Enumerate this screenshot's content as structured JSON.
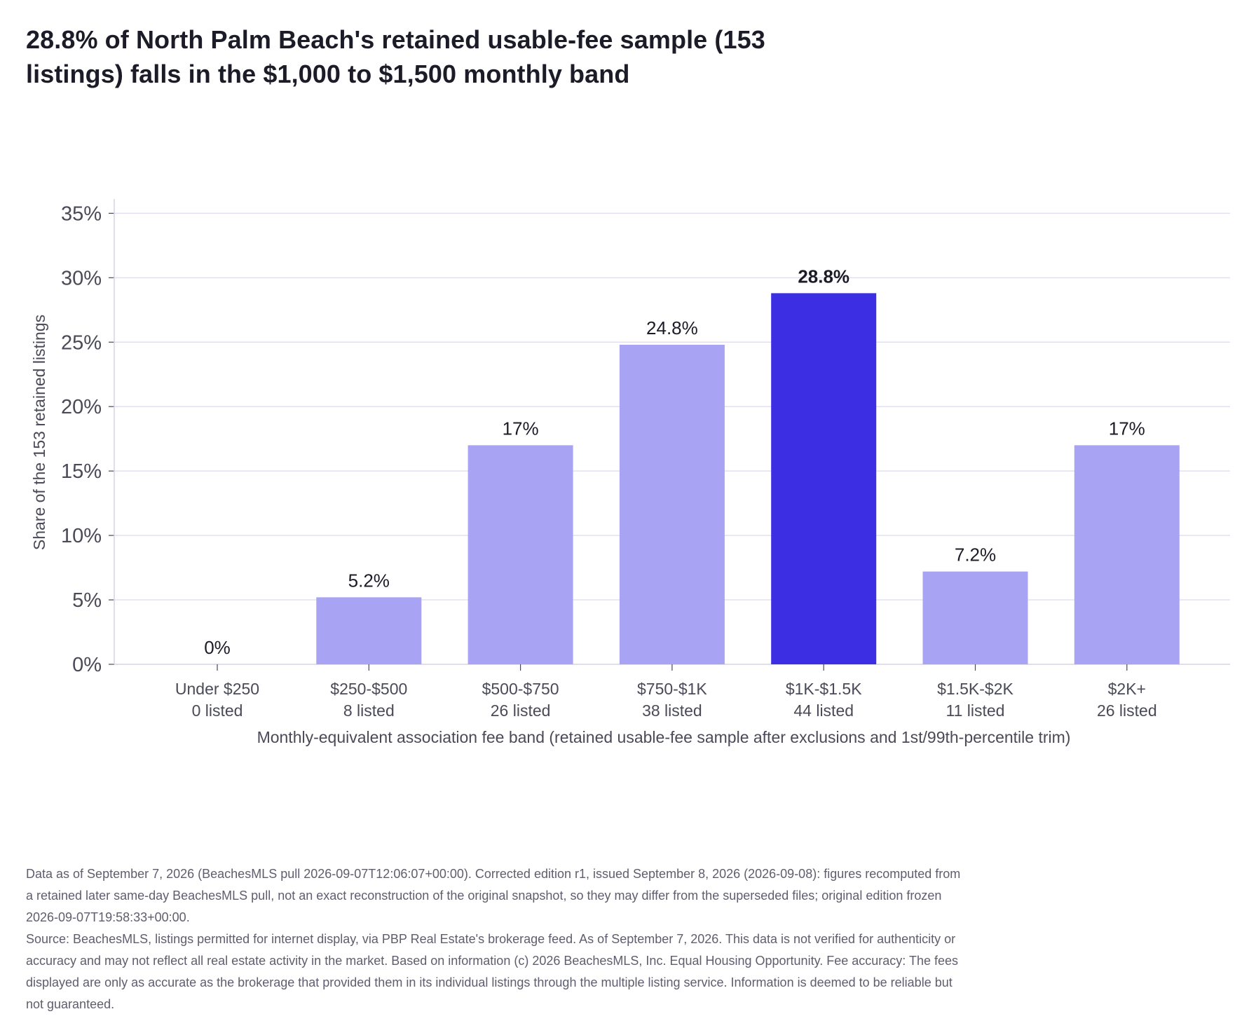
{
  "chart_data": {
    "type": "bar",
    "title": "28.8% of North Palm Beach's retained usable-fee sample (153 listings) falls in the $1,000 to $1,500 monthly band",
    "categories": [
      "Under $250",
      "$250-$500",
      "$500-$750",
      "$750-$1K",
      "$1K-$1.5K",
      "$1.5K-$2K",
      "$2K+"
    ],
    "category_sublabels": [
      "0 listed",
      "8 listed",
      "26 listed",
      "38 listed",
      "44 listed",
      "11 listed",
      "26 listed"
    ],
    "values": [
      0,
      5.2,
      17,
      24.8,
      28.8,
      7.2,
      17
    ],
    "data_labels": [
      "0%",
      "5.2%",
      "17%",
      "24.8%",
      "28.8%",
      "7.2%",
      "17%"
    ],
    "highlight_index": 4,
    "xlabel": "Monthly-equivalent association fee band (retained usable-fee sample after exclusions and 1st/99th-percentile trim)",
    "ylabel": "Share of the 153 retained listings",
    "ylim": [
      0,
      36
    ],
    "yticks": [
      0,
      5,
      10,
      15,
      20,
      25,
      30,
      35
    ],
    "ytick_labels": [
      "0%",
      "5%",
      "10%",
      "15%",
      "20%",
      "25%",
      "30%",
      "35%"
    ],
    "grid": true,
    "legend": "none",
    "colors": {
      "bar": "#a8a3f3",
      "highlight": "#3b2ee3",
      "grid": "#e2e0f0",
      "axis": "#d6d4e6",
      "tick_text": "#4a4a58"
    }
  },
  "footer": {
    "note": "Data as of September 7, 2026 (BeachesMLS pull 2026-09-07T12:06:07+00:00). Corrected edition r1, issued September 8, 2026 (2026-09-08): figures recomputed from a retained later same-day BeachesMLS pull, not an exact reconstruction of the original snapshot, so they may differ from the superseded files; original edition frozen 2026-09-07T19:58:33+00:00.",
    "source": "Source: BeachesMLS, listings permitted for internet display, via PBP Real Estate's brokerage feed. As of September 7, 2026. This data is not verified for authenticity or accuracy and may not reflect all real estate activity in the market. Based on information (c) 2026 BeachesMLS, Inc. Equal Housing Opportunity. Fee accuracy: The fees displayed are only as accurate as the brokerage that provided them in its individual listings through the multiple listing service. Information is deemed to be reliable but not guaranteed."
  }
}
